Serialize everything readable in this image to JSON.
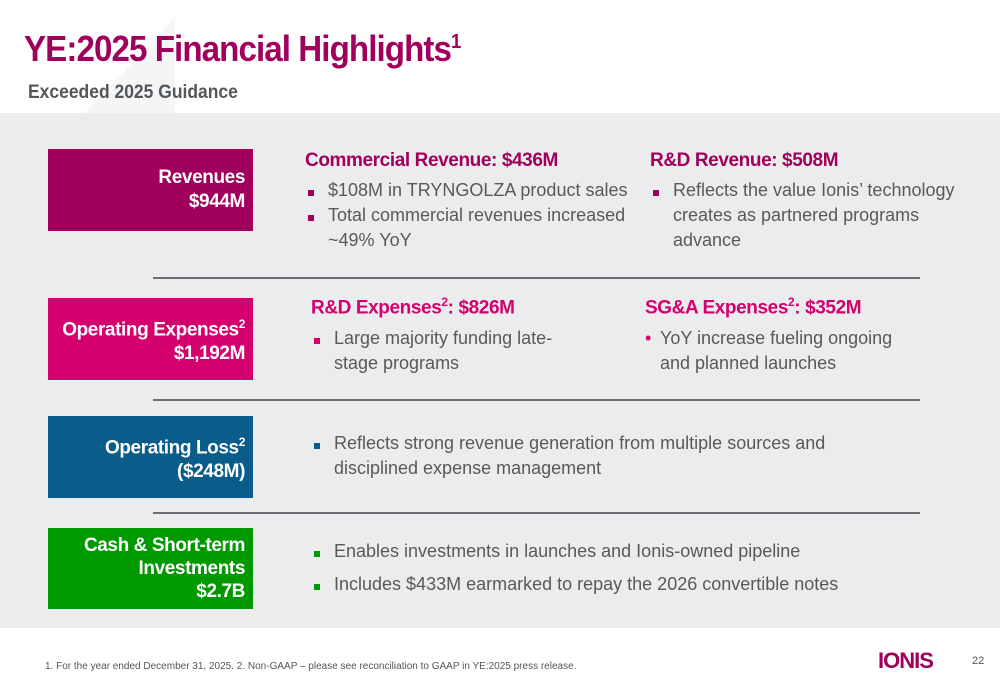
{
  "header": {
    "title": "YE:2025 Financial Highlights",
    "title_sup": "1",
    "subtitle": "Exceeded 2025 Guidance"
  },
  "colors": {
    "revenues": "#a0005c",
    "opex": "#d4006e",
    "loss": "#0a5c8a",
    "cash": "#009900"
  },
  "rows": [
    {
      "box_label": "Revenues",
      "box_sup": "",
      "box_value": "$944M",
      "col1": {
        "heading": "Commercial Revenue: $436M",
        "bullets": [
          "$108M in TRYNGOLZA product sales",
          "Total commercial revenues increased ~49% YoY"
        ]
      },
      "col2": {
        "heading": "R&D Revenue: $508M",
        "bullets": [
          "Reflects the value Ionis’ technology creates as partnered programs advance"
        ]
      }
    },
    {
      "box_label": "Operating Expenses",
      "box_sup": "2",
      "box_value": "$1,192M",
      "col1": {
        "heading_pre": "R&D Expenses",
        "heading_sup": "2",
        "heading_post": ": $826M",
        "bullets": [
          "Large majority funding late-stage programs"
        ]
      },
      "col2": {
        "heading_pre": "SG&A Expenses",
        "heading_sup": "2",
        "heading_post": ": $352M",
        "bullets": [
          "YoY increase fueling ongoing and planned launches"
        ]
      }
    },
    {
      "box_label": "Operating Loss",
      "box_sup": "2",
      "box_value": "($248M)",
      "col1": {
        "bullets": [
          "Reflects strong revenue generation from multiple sources and disciplined expense management"
        ]
      }
    },
    {
      "box_label": "Cash & Short-term Investments",
      "box_value": "$2.7B",
      "col1": {
        "bullets": [
          "Enables investments in launches and Ionis-owned pipeline",
          "Includes $433M earmarked to repay the 2026 convertible notes"
        ]
      }
    }
  ],
  "footer": {
    "footnote": "1. For the year ended December 31, 2025. 2. Non-GAAP – please see reconciliation to GAAP in YE:2025 press release.",
    "logo": "IONIS",
    "page": "22"
  }
}
